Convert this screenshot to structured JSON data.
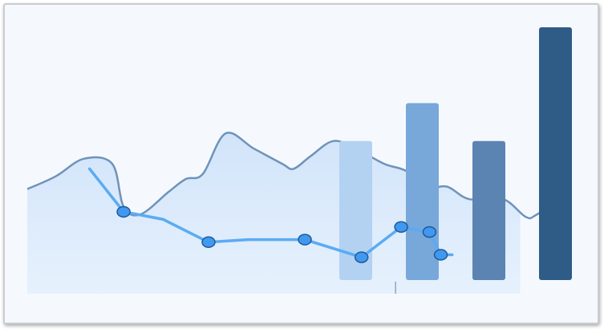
{
  "chart_data": {
    "type": "bar",
    "title": "",
    "xlabel": "",
    "ylabel": "",
    "ylim": [
      0,
      100
    ],
    "grid": false,
    "legend": "none",
    "bars": {
      "values": [
        55,
        70,
        55,
        100
      ],
      "colors": [
        "#b3d2f2",
        "#78a7da",
        "#5b84b3",
        "#2e5c87"
      ]
    },
    "area": {
      "x": [
        0,
        5,
        10,
        15,
        17,
        20,
        25,
        28,
        31,
        35,
        40,
        45,
        47,
        50,
        54,
        58,
        63,
        67,
        70,
        74,
        78,
        84,
        88,
        90,
        96
      ],
      "values": [
        36,
        41,
        48,
        46,
        29,
        26,
        35,
        40,
        42,
        58,
        52,
        46,
        44,
        49,
        55,
        52,
        46,
        43,
        36,
        37,
        32,
        32,
        25,
        26,
        35
      ],
      "line_color": "#6f93ba",
      "fill_color": "#d8e8fb",
      "xlim": [
        0,
        96
      ],
      "fill_to": 96
    },
    "line": {
      "x": [
        11,
        17,
        24,
        32,
        39,
        49,
        59,
        66,
        71,
        73,
        75
      ],
      "values": [
        44,
        27,
        24,
        15,
        16,
        16,
        9,
        21,
        19,
        10,
        10
      ],
      "color": "#5aabf3",
      "marker_color": "#4198ef",
      "marker_indices": [
        1,
        3,
        5,
        6,
        7,
        8,
        9
      ],
      "xlim": [
        0,
        96
      ]
    },
    "baseline_tick_x": 66
  }
}
